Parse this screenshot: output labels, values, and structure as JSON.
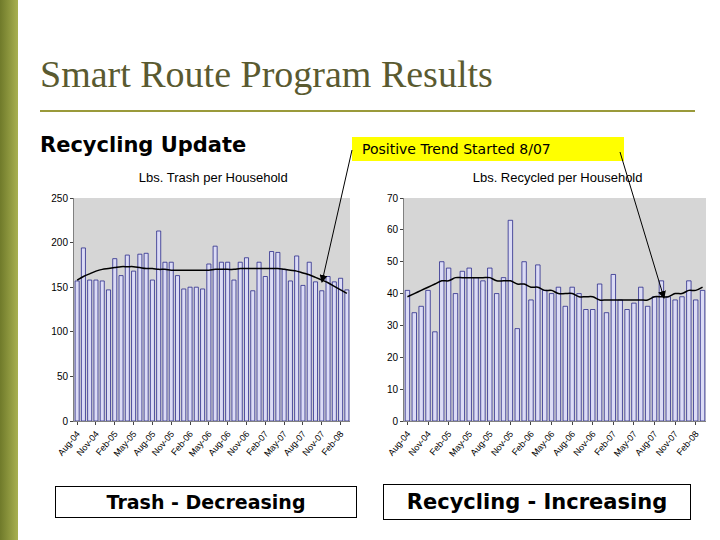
{
  "slide": {
    "title": "Smart Route Program Results",
    "subtitle": "Recycling Update",
    "callout": "Positive Trend Started 8/07",
    "captions": [
      "Trash - Decreasing",
      "Recycling - Increasing"
    ]
  },
  "chart_data": [
    {
      "type": "bar",
      "title": "Lbs. Trash per Household",
      "categories": [
        "Aug-04",
        null,
        null,
        "Nov-04",
        null,
        null,
        "Feb-05",
        null,
        null,
        "May-05",
        null,
        null,
        "Aug-05",
        null,
        null,
        "Nov-05",
        null,
        null,
        "Feb-06",
        null,
        null,
        "May-06",
        null,
        null,
        "Aug-06",
        null,
        null,
        "Nov-06",
        null,
        null,
        "Feb-07",
        null,
        null,
        "May-07",
        null,
        null,
        "Aug-07",
        null,
        null,
        "Nov-07",
        null,
        null,
        "Feb-08",
        null
      ],
      "series": [
        {
          "color": "#dcdcf5",
          "values": [
            157,
            194,
            158,
            158,
            157,
            147,
            182,
            163,
            186,
            168,
            187,
            188,
            158,
            213,
            178,
            178,
            163,
            148,
            150,
            150,
            148,
            176,
            196,
            178,
            178,
            158,
            178,
            183,
            146,
            178,
            162,
            190,
            189,
            170,
            157,
            185,
            152,
            178,
            156,
            146,
            162,
            156,
            160,
            147
          ]
        },
        {
          "type": "line",
          "color": "#000000",
          "values": [
            158,
            162,
            165,
            168,
            170,
            171,
            172,
            173,
            173,
            173,
            172,
            171,
            171,
            170,
            170,
            169,
            169,
            169,
            169,
            169,
            169,
            169,
            170,
            170,
            170,
            170,
            171,
            171,
            171,
            171,
            171,
            171,
            171,
            170,
            169,
            168,
            166,
            164,
            161,
            158,
            155,
            151,
            147,
            143
          ]
        }
      ],
      "ylim": [
        0,
        250
      ],
      "yticks": [
        0,
        50,
        100,
        150,
        200,
        250
      ],
      "grid": false
    },
    {
      "type": "bar",
      "title": "Lbs. Recycled per Household",
      "categories": [
        "Aug-04",
        null,
        null,
        "Nov-04",
        null,
        null,
        "Feb-05",
        null,
        null,
        "May-05",
        null,
        null,
        "Aug-05",
        null,
        null,
        "Nov-05",
        null,
        null,
        "Feb-06",
        null,
        null,
        "May-06",
        null,
        null,
        "Aug-06",
        null,
        null,
        "Nov-06",
        null,
        null,
        "Feb-07",
        null,
        null,
        "May-07",
        null,
        null,
        "Aug-07",
        null,
        null,
        "Nov-07",
        null,
        null,
        "Feb-08",
        null
      ],
      "series": [
        {
          "color": "#dcdcf5",
          "values": [
            41,
            34,
            36,
            41,
            28,
            50,
            48,
            40,
            47,
            48,
            45,
            44,
            48,
            40,
            45,
            63,
            29,
            50,
            38,
            49,
            41,
            40,
            42,
            36,
            42,
            40,
            35,
            35,
            43,
            34,
            46,
            38,
            35,
            37,
            42,
            36,
            39,
            44,
            39,
            38,
            39,
            44,
            38,
            41
          ]
        },
        {
          "type": "line",
          "color": "#000000",
          "values": [
            39,
            40,
            41,
            42,
            43,
            44,
            44,
            45,
            45,
            45,
            45,
            45,
            45,
            44,
            44,
            44,
            43,
            43,
            42,
            42,
            41,
            41,
            40,
            40,
            40,
            39,
            39,
            39,
            38,
            38,
            38,
            38,
            38,
            38,
            38,
            38,
            39,
            39,
            39,
            40,
            40,
            41,
            41,
            42
          ]
        }
      ],
      "ylim": [
        0,
        70
      ],
      "yticks": [
        0,
        10,
        20,
        30,
        40,
        50,
        60,
        70
      ],
      "grid": false
    }
  ]
}
